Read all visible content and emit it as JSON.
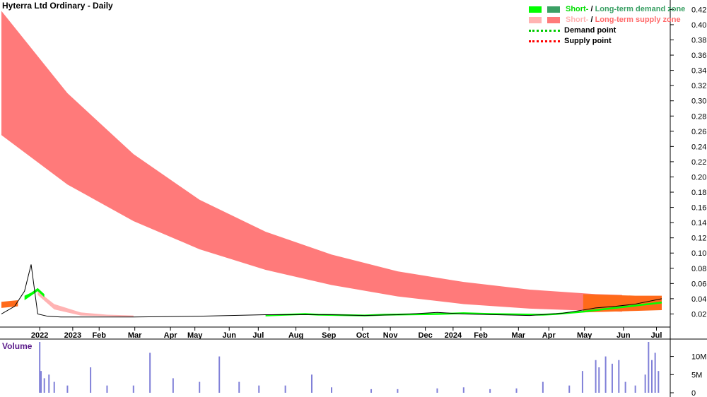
{
  "title": "Hyterra Ltd Ordinary - Daily",
  "volume_title": "Volume",
  "legend": {
    "demand_short": "Short-",
    "demand_sep": " / ",
    "demand_long": "Long-term demand zone",
    "supply_short": "Short-",
    "supply_sep": " / ",
    "supply_long": "Long-term supply zone",
    "demand_point": "Demand point",
    "supply_point": "Supply point"
  },
  "colors": {
    "short_demand": "#00ff00",
    "long_demand": "#3aa064",
    "short_supply": "#ffb3b3",
    "long_supply": "#ff7a7a",
    "demand_point": "#00cc00",
    "supply_point": "#ff0000",
    "orange_zone": "#ff6a1a",
    "volume_bar": "#8080d8",
    "volume_title": "#5a1a8a"
  },
  "chart_data": {
    "type": "line",
    "price_axis": {
      "ticks": [
        "0.42",
        "0.40",
        "0.38",
        "0.36",
        "0.34",
        "0.32",
        "0.30",
        "0.28",
        "0.26",
        "0.24",
        "0.22",
        "0.20",
        "0.18",
        "0.16",
        "0.14",
        "0.12",
        "0.10",
        "0.08",
        "0.06",
        "0.04",
        "0.02"
      ],
      "ylim": [
        0.0,
        0.425
      ]
    },
    "volume_axis": {
      "ticks": [
        "10M",
        "5M",
        "0"
      ],
      "ylim": [
        0,
        14000000
      ]
    },
    "x_labels": [
      {
        "label": "2022",
        "t": 0.058
      },
      {
        "label": "2023",
        "t": 0.108
      },
      {
        "label": "Feb",
        "t": 0.148
      },
      {
        "label": "Mar",
        "t": 0.202
      },
      {
        "label": "Apr",
        "t": 0.256
      },
      {
        "label": "May",
        "t": 0.293
      },
      {
        "label": "Jun",
        "t": 0.345
      },
      {
        "label": "Jul",
        "t": 0.389
      },
      {
        "label": "Aug",
        "t": 0.446
      },
      {
        "label": "Sep",
        "t": 0.496
      },
      {
        "label": "Oct",
        "t": 0.547
      },
      {
        "label": "Nov",
        "t": 0.589
      },
      {
        "label": "Dec",
        "t": 0.642
      },
      {
        "label": "2024",
        "t": 0.684
      },
      {
        "label": "Feb",
        "t": 0.726
      },
      {
        "label": "Mar",
        "t": 0.783
      },
      {
        "label": "Apr",
        "t": 0.829
      },
      {
        "label": "May",
        "t": 0.883
      },
      {
        "label": "Jun",
        "t": 0.942
      },
      {
        "label": "Jul",
        "t": 0.992
      }
    ],
    "long_supply_zone": {
      "t": [
        0.0,
        0.1,
        0.2,
        0.3,
        0.4,
        0.5,
        0.6,
        0.7,
        0.8,
        0.9,
        0.94
      ],
      "upper": [
        0.418,
        0.31,
        0.23,
        0.17,
        0.128,
        0.098,
        0.076,
        0.062,
        0.052,
        0.046,
        0.045
      ],
      "lower": [
        0.255,
        0.19,
        0.142,
        0.105,
        0.078,
        0.058,
        0.043,
        0.033,
        0.027,
        0.024,
        0.023
      ]
    },
    "short_supply_zone": {
      "t": [
        0.055,
        0.08,
        0.12,
        0.16,
        0.2
      ],
      "upper": [
        0.05,
        0.033,
        0.022,
        0.019,
        0.018
      ],
      "lower": [
        0.045,
        0.026,
        0.018,
        0.017,
        0.016
      ]
    },
    "short_demand_zone": {
      "t": [
        0.035,
        0.045,
        0.055,
        0.065
      ],
      "upper": [
        0.044,
        0.048,
        0.054,
        0.046
      ],
      "lower": [
        0.038,
        0.044,
        0.05,
        0.042
      ]
    },
    "orange_zones": [
      {
        "t": [
          0.0,
          0.025
        ],
        "upper": [
          0.036,
          0.038
        ],
        "lower": [
          0.028,
          0.03
        ]
      },
      {
        "t": [
          0.881,
          0.92,
          0.96,
          1.0
        ],
        "upper": [
          0.046,
          0.045,
          0.044,
          0.044
        ],
        "lower": [
          0.022,
          0.023,
          0.024,
          0.025
        ]
      }
    ],
    "demand_line": {
      "t": [
        0.4,
        0.46,
        0.48,
        0.55,
        0.58,
        0.66,
        0.7,
        0.74,
        0.82,
        0.84,
        0.88,
        0.92,
        0.96,
        1.0
      ],
      "val": [
        0.018,
        0.02,
        0.019,
        0.018,
        0.019,
        0.02,
        0.021,
        0.02,
        0.019,
        0.02,
        0.023,
        0.027,
        0.031,
        0.035
      ]
    },
    "price_series": {
      "t": [
        0.0,
        0.02,
        0.035,
        0.045,
        0.055,
        0.07,
        0.09,
        0.12,
        0.2,
        0.3,
        0.4,
        0.5,
        0.55,
        0.6,
        0.66,
        0.7,
        0.75,
        0.8,
        0.85,
        0.88,
        0.9,
        0.93,
        0.96,
        1.0
      ],
      "val": [
        0.02,
        0.03,
        0.05,
        0.085,
        0.02,
        0.017,
        0.016,
        0.016,
        0.016,
        0.017,
        0.019,
        0.019,
        0.018,
        0.019,
        0.022,
        0.02,
        0.019,
        0.018,
        0.021,
        0.025,
        0.028,
        0.03,
        0.033,
        0.04
      ]
    },
    "volume_bars": {
      "t": [
        0.058,
        0.06,
        0.065,
        0.072,
        0.08,
        0.1,
        0.135,
        0.16,
        0.2,
        0.225,
        0.26,
        0.3,
        0.33,
        0.36,
        0.39,
        0.43,
        0.47,
        0.5,
        0.56,
        0.6,
        0.66,
        0.7,
        0.74,
        0.78,
        0.82,
        0.86,
        0.88,
        0.9,
        0.905,
        0.915,
        0.925,
        0.935,
        0.945,
        0.96,
        0.975,
        0.98,
        0.985,
        0.99,
        0.995
      ],
      "val": [
        14000000,
        6000000,
        4000000,
        5000000,
        3000000,
        2000000,
        7000000,
        2000000,
        2000000,
        11000000,
        4000000,
        3000000,
        10000000,
        3000000,
        2000000,
        2000000,
        5000000,
        1500000,
        1000000,
        1000000,
        1200000,
        1500000,
        1000000,
        1200000,
        3000000,
        2000000,
        6000000,
        9000000,
        7000000,
        10000000,
        8000000,
        9000000,
        3000000,
        2000000,
        5000000,
        14000000,
        9000000,
        11000000,
        6000000
      ]
    }
  }
}
